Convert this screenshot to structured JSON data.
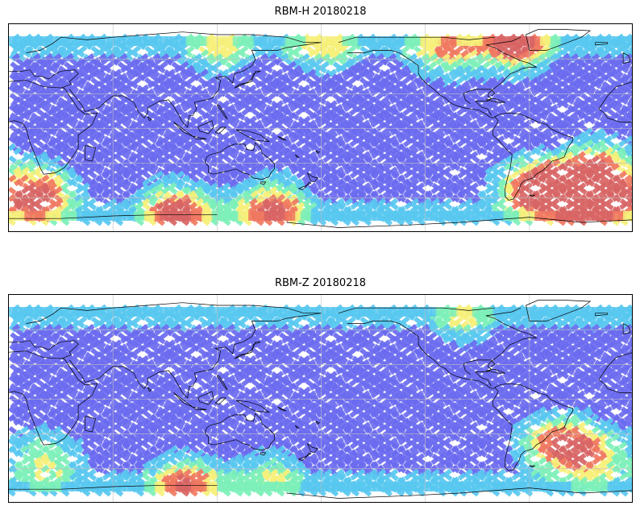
{
  "panels": [
    {
      "title": "RBM-H 20180218",
      "variable": "RBM-H"
    },
    {
      "title": "RBM-Z 20180218",
      "variable": "RBM-Z"
    }
  ],
  "colors": {
    "low": "#6a6af0",
    "midlow": "#58c8f0",
    "mid": "#7df0b8",
    "midhigh": "#f6f07a",
    "high": "#f07860",
    "highest": "#d86464",
    "coastline": "#000000",
    "grid": "#c0c0c0"
  },
  "map": {
    "projection": "equirectangular",
    "lon_center": 180,
    "lat_range": [
      -80,
      80
    ],
    "swath_lat_range": [
      -70,
      70
    ],
    "gridlines": "on"
  },
  "hotspots": {
    "RBM-H": [
      {
        "lon": 335,
        "lat": -55,
        "intensity": 1.0
      },
      {
        "lon": 320,
        "lat": -45,
        "intensity": 0.85
      },
      {
        "lon": 300,
        "lat": -48,
        "intensity": 0.8
      },
      {
        "lon": 15,
        "lat": -52,
        "intensity": 0.9
      },
      {
        "lon": 150,
        "lat": -62,
        "intensity": 0.75
      },
      {
        "lon": 95,
        "lat": -64,
        "intensity": 0.8
      },
      {
        "lon": 290,
        "lat": 65,
        "intensity": 0.85
      },
      {
        "lon": 250,
        "lat": 60,
        "intensity": 0.55
      },
      {
        "lon": 180,
        "lat": 64,
        "intensity": 0.45
      },
      {
        "lon": 120,
        "lat": 62,
        "intensity": 0.4
      },
      {
        "lon": 340,
        "lat": -30,
        "intensity": 0.55
      }
    ],
    "RBM-Z": [
      {
        "lon": 315,
        "lat": -35,
        "intensity": 0.75
      },
      {
        "lon": 335,
        "lat": -45,
        "intensity": 0.55
      },
      {
        "lon": 100,
        "lat": -66,
        "intensity": 0.7
      },
      {
        "lon": 20,
        "lat": -48,
        "intensity": 0.45
      },
      {
        "lon": 260,
        "lat": 62,
        "intensity": 0.35
      },
      {
        "lon": 150,
        "lat": -60,
        "intensity": 0.35
      }
    ]
  }
}
